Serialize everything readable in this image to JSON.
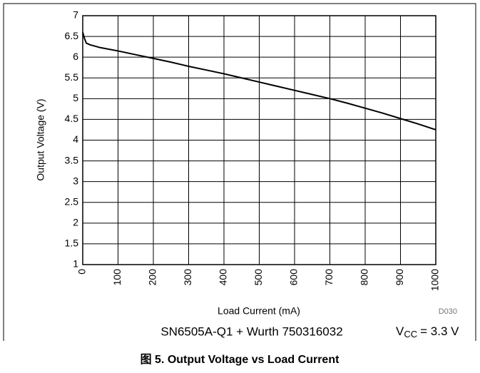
{
  "chart_data": {
    "type": "line",
    "x_label": "Load Current (mA)",
    "y_label": "Output Voltage (V)",
    "code": "D030",
    "subtitle": "SN6505A-Q1 + Wurth 750316032",
    "condition": {
      "symbol": "V",
      "subscript": "CC",
      "text": "= 3.3 V"
    },
    "caption": "图 5. Output Voltage vs Load Current",
    "x": [
      0,
      5,
      10,
      20,
      50,
      100,
      150,
      200,
      250,
      300,
      350,
      400,
      450,
      500,
      550,
      600,
      650,
      700,
      750,
      800,
      850,
      900,
      950,
      1000
    ],
    "series": [
      {
        "name": "Output Voltage",
        "color": "#000000",
        "values": [
          6.6,
          6.45,
          6.34,
          6.3,
          6.23,
          6.15,
          6.06,
          5.97,
          5.88,
          5.78,
          5.69,
          5.6,
          5.5,
          5.4,
          5.3,
          5.2,
          5.1,
          5.0,
          4.89,
          4.77,
          4.65,
          4.52,
          4.39,
          4.25
        ]
      }
    ],
    "xlim": [
      0,
      1000
    ],
    "xticks": [
      0,
      100,
      200,
      300,
      400,
      500,
      600,
      700,
      800,
      900,
      1000
    ],
    "ylim": [
      1,
      7
    ],
    "yticks": [
      1,
      1.5,
      2,
      2.5,
      3,
      3.5,
      4,
      4.5,
      5,
      5.5,
      6,
      6.5,
      7
    ],
    "grid": true
  }
}
